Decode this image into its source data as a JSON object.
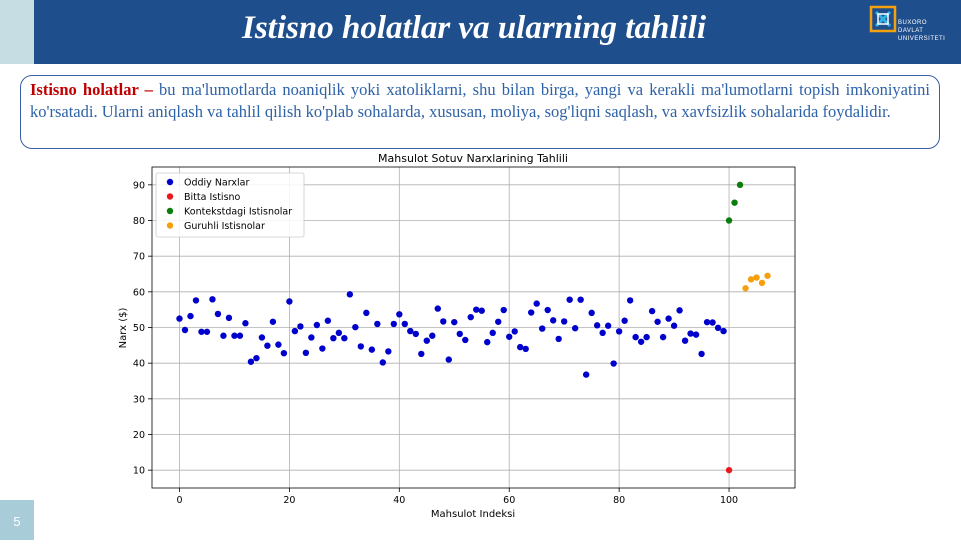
{
  "slide": {
    "title": "Istisno holatlar va ularning tahlili",
    "page_number": "5",
    "logo": {
      "line1": "BUXORO",
      "line2": "DAVLAT",
      "line3": "UNIVERSITETI",
      "icon": "university-logo-icon"
    }
  },
  "intro": {
    "term": "Istisno holatlar –",
    "text": " bu ma'lumotlarda noaniqlik yoki xatoliklarni, shu bilan birga, yangi va kerakli ma'lumotlarni topish imkoniyatini ko'rsatadi. Ularni aniqlash va tahlil qilish ko'plab sohalarda, xususan, moliya, sog'liqni saqlash, va xavfsizlik sohalarida foydalidir."
  },
  "colors": {
    "title_bar": "#1f4e8c",
    "term": "#c00000",
    "body_text": "#2e62a7",
    "normal": "#0000cc",
    "single": "#e8191c",
    "context": "#0a7d0a",
    "group": "#f5a10f"
  },
  "chart_data": {
    "type": "scatter",
    "title": "Mahsulot Sotuv Narxlarining Tahlili",
    "xlabel": "Mahsulot Indeksi",
    "ylabel": "Narx ($)",
    "xlim": [
      -5,
      112
    ],
    "ylim": [
      5,
      95
    ],
    "xticks": [
      0,
      20,
      40,
      60,
      80,
      100
    ],
    "yticks": [
      10,
      20,
      30,
      40,
      50,
      60,
      70,
      80,
      90
    ],
    "grid": true,
    "legend_position": "top-left",
    "series": [
      {
        "name": "Oddiy Narxlar",
        "color": "#0000cc",
        "x": [
          0,
          1,
          2,
          3,
          4,
          5,
          6,
          7,
          8,
          9,
          10,
          11,
          12,
          13,
          14,
          15,
          16,
          17,
          18,
          19,
          20,
          21,
          22,
          23,
          24,
          25,
          26,
          27,
          28,
          29,
          30,
          31,
          32,
          33,
          34,
          35,
          36,
          37,
          38,
          39,
          40,
          41,
          42,
          43,
          44,
          45,
          46,
          47,
          48,
          49,
          50,
          51,
          52,
          53,
          54,
          55,
          56,
          57,
          58,
          59,
          60,
          61,
          62,
          63,
          64,
          65,
          66,
          67,
          68,
          69,
          70,
          71,
          72,
          73,
          74,
          75,
          76,
          77,
          78,
          79,
          80,
          81,
          82,
          83,
          84,
          85,
          86,
          87,
          88,
          89,
          90,
          91,
          92,
          93,
          94,
          95,
          96,
          97,
          98,
          99
        ],
        "y": [
          52.5,
          49.3,
          53.2,
          57.6,
          48.8,
          48.8,
          57.9,
          53.8,
          47.7,
          52.7,
          47.7,
          47.7,
          51.2,
          40.4,
          41.4,
          47.2,
          44.9,
          51.6,
          45.2,
          42.8,
          57.3,
          49.0,
          50.3,
          42.9,
          47.2,
          50.7,
          44.1,
          51.9,
          47.0,
          48.5,
          47.0,
          59.3,
          50.1,
          44.7,
          54.1,
          43.8,
          51.0,
          40.2,
          43.3,
          51.0,
          53.7,
          51.0,
          49.0,
          48.2,
          42.6,
          46.3,
          47.7,
          55.3,
          51.7,
          41.0,
          51.5,
          48.2,
          46.5,
          52.9,
          55.0,
          54.7,
          45.9,
          48.5,
          51.6,
          54.9,
          47.4,
          48.9,
          44.5,
          44.0,
          54.2,
          56.7,
          49.7,
          54.9,
          52.0,
          46.8,
          51.7,
          57.8,
          49.8,
          57.8,
          36.8,
          54.1,
          50.6,
          48.5,
          50.5,
          39.9,
          48.9,
          51.9,
          57.6,
          47.3,
          46.0,
          47.3,
          54.6,
          51.6,
          47.3,
          52.5,
          50.5,
          54.8,
          46.3,
          48.3,
          48.0,
          42.6,
          51.5,
          51.4,
          49.9,
          49.0
        ]
      },
      {
        "name": "Bitta Istisno",
        "color": "#e8191c",
        "x": [
          100
        ],
        "y": [
          10
        ]
      },
      {
        "name": "Kontekstdagi Istisnolar",
        "color": "#0a7d0a",
        "x": [
          100,
          101,
          102
        ],
        "y": [
          80,
          85,
          90
        ]
      },
      {
        "name": "Guruhli Istisnolar",
        "color": "#f5a10f",
        "x": [
          103,
          104,
          105,
          106,
          107
        ],
        "y": [
          61,
          63.5,
          64,
          62.5,
          64.5
        ]
      }
    ]
  }
}
